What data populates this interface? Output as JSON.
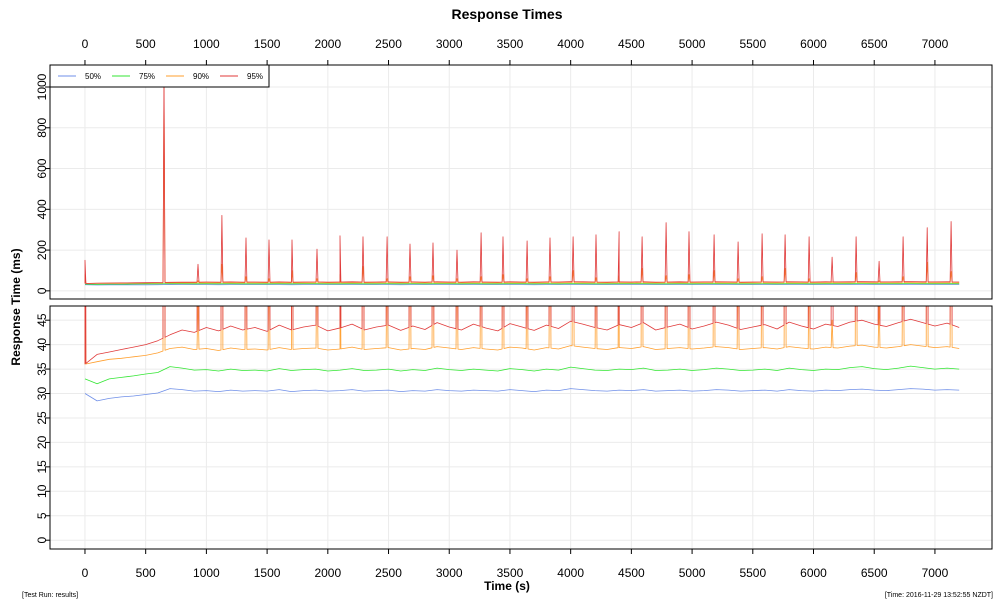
{
  "chart_data": {
    "type": "line",
    "title": "Response Times",
    "xlabel": "Time (s)",
    "ylabel": "Response Time (ms)",
    "footer_left": "[Test Run: results]",
    "footer_right": "[Time: 2016-11-29 13:52:55 NZDT]",
    "grid": true,
    "legend_position": "top-left",
    "x_ticks": [
      0,
      500,
      1000,
      1500,
      2000,
      2500,
      3000,
      3500,
      4000,
      4500,
      5000,
      5500,
      6000,
      6500,
      7000
    ],
    "xlim": [
      -288,
      7470
    ],
    "panels": [
      {
        "name": "full",
        "ylim": [
          -40,
          1108
        ],
        "y_ticks": [
          0,
          200,
          400,
          600,
          800,
          1000
        ]
      },
      {
        "name": "zoomed",
        "ylim": [
          -1.8,
          47.9
        ],
        "y_ticks": [
          0,
          5,
          10,
          15,
          20,
          25,
          30,
          35,
          40,
          45
        ]
      }
    ],
    "x_start": 0,
    "x_step": 100,
    "series": [
      {
        "name": "50%",
        "color": "#6f8fe8",
        "values": [
          30,
          28.5,
          29,
          29.3,
          29.5,
          29.8,
          30.1,
          31,
          30.8,
          30.5,
          30.6,
          30.4,
          30.7,
          30.5,
          30.6,
          30.5,
          30.8,
          30.4,
          30.6,
          30.7,
          30.5,
          30.6,
          30.8,
          30.5,
          30.6,
          30.7,
          30.4,
          30.6,
          30.5,
          30.8,
          30.6,
          30.5,
          30.7,
          30.6,
          30.5,
          30.8,
          30.6,
          30.4,
          30.7,
          30.6,
          31,
          30.8,
          30.6,
          30.5,
          30.7,
          30.6,
          30.8,
          30.5,
          30.6,
          30.7,
          30.5,
          30.6,
          30.8,
          30.7,
          30.5,
          30.6,
          30.7,
          30.5,
          30.8,
          30.6,
          30.5,
          30.7,
          30.6,
          30.8,
          30.9,
          30.7,
          30.6,
          30.8,
          31,
          30.9,
          30.7,
          30.8,
          30.7
        ]
      },
      {
        "name": "75%",
        "color": "#33e633",
        "values": [
          33,
          32,
          33,
          33.3,
          33.6,
          34,
          34.3,
          35.5,
          35.2,
          34.8,
          34.9,
          34.6,
          35,
          34.7,
          34.8,
          34.6,
          35.1,
          34.7,
          34.9,
          35,
          34.6,
          34.8,
          35.1,
          34.7,
          34.8,
          35,
          34.6,
          34.9,
          34.7,
          35.2,
          34.9,
          34.7,
          35,
          34.8,
          34.6,
          35.1,
          34.9,
          34.6,
          35,
          34.8,
          35.4,
          35.1,
          34.8,
          34.7,
          35,
          34.9,
          35.2,
          34.7,
          34.8,
          35,
          34.7,
          34.9,
          35.2,
          35,
          34.7,
          34.8,
          35,
          34.7,
          35.2,
          34.9,
          34.7,
          35,
          34.9,
          35.3,
          35.5,
          35.1,
          34.9,
          35.2,
          35.6,
          35.3,
          35,
          35.2,
          35
        ]
      },
      {
        "name": "90%",
        "color": "#ff9f2e",
        "values": [
          36,
          36.5,
          37,
          37.2,
          37.5,
          37.8,
          38.3,
          39.2,
          39.5,
          39,
          39.2,
          38.8,
          39.3,
          39,
          39.1,
          38.9,
          39.4,
          39,
          39.2,
          39.3,
          38.9,
          39.1,
          39.5,
          39,
          39.2,
          39.4,
          38.9,
          39.2,
          39,
          39.6,
          39.3,
          39,
          39.4,
          39.1,
          38.9,
          39.5,
          39.3,
          38.9,
          39.4,
          39.1,
          39.8,
          39.5,
          39.2,
          39,
          39.4,
          39.2,
          39.6,
          39,
          39.2,
          39.4,
          39.1,
          39.3,
          39.6,
          39.4,
          39,
          39.2,
          39.4,
          39.1,
          39.6,
          39.3,
          39.1,
          39.5,
          39.3,
          39.7,
          39.9,
          39.5,
          39.3,
          39.6,
          40,
          39.7,
          39.4,
          39.6,
          39.2
        ]
      },
      {
        "name": "95%",
        "color": "#e03a3a",
        "values": [
          36,
          38,
          38.5,
          39,
          39.5,
          40,
          40.8,
          42,
          43,
          42.5,
          43.5,
          42.8,
          43.8,
          43,
          43.5,
          42.7,
          44,
          43,
          43.6,
          44,
          42.8,
          43.4,
          44.2,
          43,
          43.6,
          44,
          42.9,
          43.8,
          43.1,
          44.5,
          43.6,
          43,
          44.2,
          43.4,
          42.8,
          44.3,
          43.6,
          42.9,
          44,
          43.3,
          44.8,
          44.2,
          43.5,
          43,
          44.1,
          43.5,
          44.5,
          43,
          43.6,
          44.2,
          43.2,
          43.8,
          44.6,
          44,
          43.1,
          43.6,
          44.1,
          43.2,
          44.6,
          43.8,
          43.2,
          44.2,
          43.7,
          44.6,
          45,
          44.2,
          43.7,
          44.5,
          45.2,
          44.5,
          43.8,
          44.4,
          43.5
        ]
      }
    ],
    "spikes": [
      {
        "t": 0,
        "p95": 150,
        "p90": 80
      },
      {
        "t": 651,
        "p95": 1060,
        "p90": 1000
      },
      {
        "t": 931,
        "p95": 130,
        "p90": 50
      },
      {
        "t": 1128,
        "p95": 370,
        "p90": 130
      },
      {
        "t": 1326,
        "p95": 260,
        "p90": 70
      },
      {
        "t": 1516,
        "p95": 250,
        "p90": 60
      },
      {
        "t": 1705,
        "p95": 250,
        "p90": 100
      },
      {
        "t": 1911,
        "p95": 205,
        "p90": 60
      },
      {
        "t": 2100,
        "p95": 270,
        "p90": 80
      },
      {
        "t": 2290,
        "p95": 265,
        "p90": 120
      },
      {
        "t": 2488,
        "p95": 265,
        "p90": 60
      },
      {
        "t": 2677,
        "p95": 230,
        "p90": 70
      },
      {
        "t": 2866,
        "p95": 235,
        "p90": 75
      },
      {
        "t": 3064,
        "p95": 200,
        "p90": 60
      },
      {
        "t": 3262,
        "p95": 285,
        "p90": 70
      },
      {
        "t": 3443,
        "p95": 265,
        "p90": 80
      },
      {
        "t": 3641,
        "p95": 245,
        "p90": 60
      },
      {
        "t": 3830,
        "p95": 260,
        "p90": 70
      },
      {
        "t": 4020,
        "p95": 265,
        "p90": 100
      },
      {
        "t": 4209,
        "p95": 275,
        "p90": 65
      },
      {
        "t": 4399,
        "p95": 290,
        "p90": 75
      },
      {
        "t": 4588,
        "p95": 265,
        "p90": 110
      },
      {
        "t": 4786,
        "p95": 335,
        "p90": 75
      },
      {
        "t": 4975,
        "p95": 290,
        "p90": 80
      },
      {
        "t": 5181,
        "p95": 275,
        "p90": 100
      },
      {
        "t": 5379,
        "p95": 240,
        "p90": 60
      },
      {
        "t": 5577,
        "p95": 280,
        "p90": 70
      },
      {
        "t": 5766,
        "p95": 275,
        "p90": 110
      },
      {
        "t": 5964,
        "p95": 265,
        "p90": 60
      },
      {
        "t": 6153,
        "p95": 165,
        "p90": 45
      },
      {
        "t": 6351,
        "p95": 265,
        "p90": 90
      },
      {
        "t": 6540,
        "p95": 145,
        "p90": 50
      },
      {
        "t": 6738,
        "p95": 265,
        "p90": 70
      },
      {
        "t": 6936,
        "p95": 310,
        "p90": 140
      },
      {
        "t": 7133,
        "p95": 340,
        "p90": 95
      }
    ]
  }
}
